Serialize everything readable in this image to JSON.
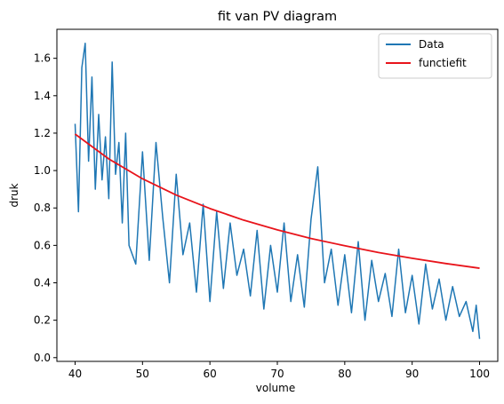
{
  "chart_data": {
    "type": "line",
    "title": "fit van PV diagram",
    "xlabel": "volume",
    "ylabel": "druk",
    "xlim": [
      37.3,
      102.7
    ],
    "ylim": [
      -0.02,
      1.755
    ],
    "xticks": [
      40,
      50,
      60,
      70,
      80,
      90,
      100
    ],
    "yticks": [
      0.0,
      0.2,
      0.4,
      0.6,
      0.8,
      1.0,
      1.2,
      1.4,
      1.6
    ],
    "ytick_labels": [
      "0.0",
      "0.2",
      "0.4",
      "0.6",
      "0.8",
      "1.0",
      "1.2",
      "1.4",
      "1.6"
    ],
    "grid": false,
    "legend_position": "top-right",
    "series": [
      {
        "name": "Data",
        "color": "#1f77b4",
        "x": [
          40,
          40.5,
          41,
          41.5,
          42,
          42.5,
          43,
          43.5,
          44,
          44.5,
          45,
          45.5,
          46,
          46.5,
          47,
          47.5,
          48,
          49,
          50,
          51,
          52,
          53,
          54,
          55,
          56,
          57,
          58,
          59,
          60,
          61,
          62,
          63,
          64,
          65,
          66,
          67,
          68,
          69,
          70,
          71,
          72,
          73,
          74,
          75,
          76,
          77,
          78,
          79,
          80,
          81,
          82,
          83,
          84,
          85,
          86,
          87,
          88,
          89,
          90,
          91,
          92,
          93,
          94,
          95,
          96,
          97,
          98,
          99,
          99.5,
          100
        ],
        "y": [
          1.25,
          0.78,
          1.55,
          1.68,
          1.05,
          1.5,
          0.9,
          1.3,
          0.95,
          1.18,
          0.85,
          1.58,
          0.98,
          1.15,
          0.72,
          1.2,
          0.6,
          0.5,
          1.1,
          0.52,
          1.15,
          0.75,
          0.4,
          0.98,
          0.55,
          0.72,
          0.35,
          0.82,
          0.3,
          0.78,
          0.37,
          0.72,
          0.44,
          0.58,
          0.33,
          0.68,
          0.26,
          0.6,
          0.35,
          0.72,
          0.3,
          0.55,
          0.27,
          0.74,
          1.02,
          0.4,
          0.58,
          0.28,
          0.55,
          0.24,
          0.62,
          0.2,
          0.52,
          0.3,
          0.45,
          0.22,
          0.58,
          0.24,
          0.44,
          0.18,
          0.5,
          0.26,
          0.42,
          0.2,
          0.38,
          0.22,
          0.3,
          0.14,
          0.28,
          0.1
        ]
      },
      {
        "name": "functiefit",
        "color": "#e8141b",
        "function": "y = 47.8 / x",
        "x": [
          40,
          45,
          50,
          55,
          60,
          65,
          70,
          75,
          80,
          85,
          90,
          95,
          100
        ],
        "y": [
          1.195,
          1.062,
          0.956,
          0.869,
          0.797,
          0.735,
          0.683,
          0.637,
          0.598,
          0.562,
          0.531,
          0.503,
          0.478
        ]
      }
    ]
  }
}
